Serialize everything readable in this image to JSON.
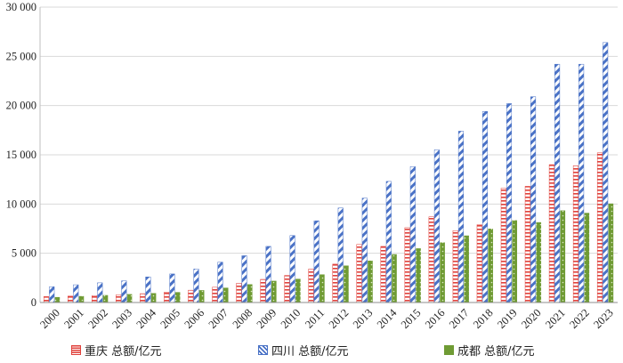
{
  "chart_data": {
    "type": "bar",
    "categories": [
      "2000",
      "2001",
      "2002",
      "2003",
      "2004",
      "2005",
      "2006",
      "2007",
      "2008",
      "2009",
      "2010",
      "2011",
      "2012",
      "2013",
      "2014",
      "2015",
      "2016",
      "2017",
      "2018",
      "2019",
      "2020",
      "2021",
      "2022",
      "2023"
    ],
    "series": [
      {
        "name": "重庆 总额/亿元",
        "color": "#e0413b",
        "pattern": "horizontal-stripes",
        "values": [
          600,
          650,
          700,
          780,
          900,
          1050,
          1250,
          1550,
          1950,
          2350,
          2750,
          3400,
          3900,
          5900,
          5700,
          7600,
          8700,
          7300,
          7900,
          11600,
          11800,
          14000,
          13900,
          15200
        ]
      },
      {
        "name": "四川 总额/亿元",
        "color": "#4a72c6",
        "pattern": "diagonal-stripes",
        "values": [
          1600,
          1800,
          2000,
          2200,
          2600,
          2900,
          3400,
          4100,
          4750,
          5700,
          6800,
          8300,
          9600,
          10600,
          12300,
          13800,
          15500,
          17400,
          19400,
          20200,
          20900,
          24200,
          24200,
          26400
        ]
      },
      {
        "name": "成都 总额/亿元",
        "color": "#6f9b34",
        "pattern": "dotted",
        "values": [
          550,
          650,
          750,
          850,
          950,
          1050,
          1250,
          1500,
          1850,
          2200,
          2400,
          2850,
          3750,
          4250,
          4900,
          5500,
          6100,
          6800,
          7500,
          8350,
          8150,
          9350,
          9100,
          10050
        ]
      }
    ],
    "yticks": [
      "0",
      "5 000",
      "10 000",
      "15 000",
      "20 000",
      "25 000",
      "30 000"
    ],
    "ylim": [
      0,
      30000
    ],
    "grid": true,
    "legend_position": "bottom",
    "title": "",
    "xlabel": "",
    "ylabel": ""
  }
}
